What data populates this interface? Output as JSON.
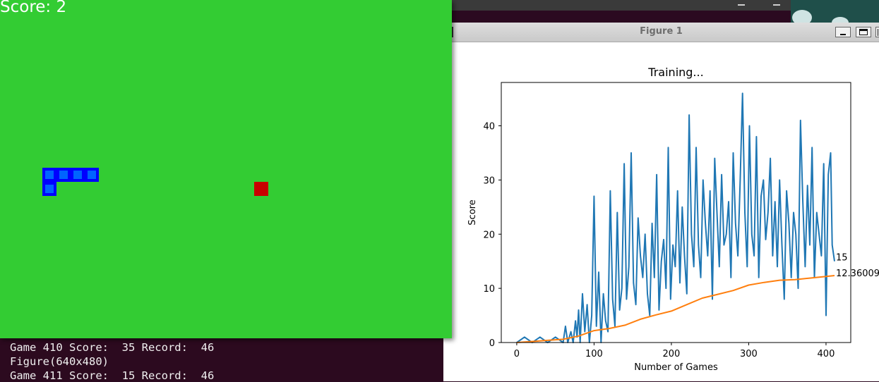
{
  "game": {
    "score_label": "Score: 2",
    "snake_cells": [
      [
        60,
        238
      ],
      [
        80,
        238
      ],
      [
        100,
        238
      ],
      [
        120,
        238
      ],
      [
        60,
        258
      ]
    ],
    "food_cell": [
      360,
      258
    ],
    "colors": {
      "background": "#33cc33",
      "snake_outer": "#0000ff",
      "snake_inner": "#0064ff",
      "food": "#c80000"
    }
  },
  "terminal": {
    "lines": [
      "Game 410 Score:  35 Record:  46",
      "Figure(640x480)",
      "Game 411 Score:  15 Record:  46"
    ]
  },
  "figure": {
    "window_title": "Figure 1",
    "buttons": {
      "minimize": "minimize-icon",
      "maximize": "maximize-icon",
      "close": "close-icon"
    }
  },
  "chart_data": {
    "type": "line",
    "title": "Training...",
    "xlabel": "Number of Games",
    "ylabel": "Score",
    "xlim": [
      -20,
      432
    ],
    "ylim": [
      0,
      48
    ],
    "xticks": [
      0,
      100,
      200,
      300,
      400
    ],
    "yticks": [
      0,
      10,
      20,
      30,
      40
    ],
    "grid": false,
    "annotations": [
      {
        "text": "15",
        "x": 411,
        "y": 15
      },
      {
        "text": "12.36009",
        "x": 411,
        "y": 12.36
      }
    ],
    "series": [
      {
        "color": "#1f77b4",
        "x": [
          0,
          10,
          20,
          30,
          40,
          50,
          60,
          63,
          66,
          70,
          73,
          76,
          78,
          80,
          82,
          85,
          88,
          91,
          94,
          97,
          100,
          103,
          106,
          109,
          112,
          115,
          118,
          121,
          124,
          127,
          130,
          133,
          136,
          139,
          142,
          145,
          148,
          151,
          154,
          157,
          160,
          163,
          166,
          169,
          172,
          175,
          178,
          181,
          184,
          187,
          190,
          193,
          196,
          199,
          202,
          205,
          208,
          211,
          214,
          217,
          220,
          223,
          226,
          229,
          232,
          235,
          238,
          241,
          244,
          247,
          250,
          253,
          256,
          259,
          262,
          265,
          268,
          271,
          274,
          277,
          280,
          283,
          286,
          289,
          292,
          295,
          298,
          301,
          304,
          307,
          310,
          313,
          316,
          319,
          322,
          325,
          328,
          331,
          334,
          337,
          340,
          343,
          346,
          349,
          352,
          355,
          358,
          361,
          364,
          367,
          370,
          373,
          376,
          379,
          382,
          385,
          388,
          391,
          394,
          397,
          400,
          403,
          406,
          408,
          411
        ],
        "y": [
          0,
          1,
          0,
          1,
          0,
          1,
          0,
          3,
          0,
          2,
          0,
          4,
          1,
          6,
          0,
          9,
          2,
          7,
          0,
          5,
          27,
          3,
          13,
          0,
          9,
          4,
          2,
          28,
          8,
          3,
          24,
          6,
          10,
          33,
          8,
          14,
          35,
          11,
          7,
          23,
          16,
          12,
          20,
          9,
          5,
          22,
          12,
          31,
          6,
          15,
          19,
          10,
          36,
          8,
          18,
          14,
          28,
          11,
          25,
          16,
          9,
          42,
          20,
          14,
          36,
          18,
          12,
          30,
          22,
          16,
          28,
          8,
          34,
          24,
          14,
          31,
          18,
          20,
          26,
          12,
          35,
          22,
          16,
          30,
          46,
          24,
          14,
          40,
          20,
          16,
          38,
          12,
          27,
          30,
          19,
          24,
          34,
          16,
          26,
          14,
          30,
          18,
          8,
          28,
          22,
          12,
          24,
          20,
          10,
          41,
          26,
          14,
          29,
          18,
          36,
          12,
          24,
          20,
          16,
          33,
          5,
          31,
          35,
          18,
          15
        ]
      },
      {
        "color": "#ff7f0e",
        "x": [
          0,
          20,
          40,
          60,
          80,
          100,
          120,
          140,
          160,
          180,
          200,
          220,
          240,
          260,
          280,
          300,
          320,
          340,
          360,
          380,
          400,
          411
        ],
        "y": [
          0,
          0.2,
          0.4,
          0.6,
          1.2,
          2.2,
          2.6,
          3.2,
          4.3,
          5.1,
          5.8,
          7.0,
          8.2,
          8.9,
          9.6,
          10.6,
          11.1,
          11.5,
          11.6,
          11.9,
          12.2,
          12.36
        ]
      }
    ]
  }
}
